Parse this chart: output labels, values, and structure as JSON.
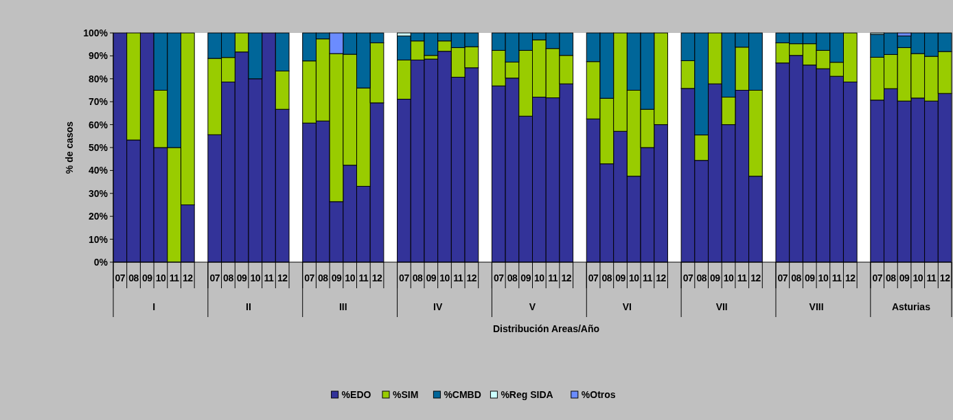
{
  "chart_data": {
    "type": "bar",
    "stacked": true,
    "xlabel": "Distribución Areas/Año",
    "ylabel": "% de casos",
    "categories": [
      "07",
      "08",
      "09",
      "10",
      "11",
      "12",
      null,
      "07",
      "08",
      "09",
      "10",
      "11",
      "12",
      null,
      "07",
      "08",
      "09",
      "10",
      "11",
      "12",
      null,
      "07",
      "08",
      "09",
      "10",
      "11",
      "12",
      null,
      "07",
      "08",
      "09",
      "10",
      "11",
      "12",
      null,
      "07",
      "08",
      "09",
      "10",
      "11",
      "12",
      null,
      "07",
      "08",
      "09",
      "10",
      "11",
      "12",
      null,
      "07",
      "08",
      "09",
      "10",
      "11",
      "12",
      null,
      "07",
      "08",
      "09",
      "10",
      "11",
      "12"
    ],
    "annotations": [
      "I",
      "II",
      "III",
      "IV",
      "V",
      "VI",
      "VII",
      "VIII",
      "Asturias"
    ],
    "ylim": [
      0,
      100
    ],
    "yticks": [
      {
        "value": 0,
        "label": "0%"
      },
      {
        "value": 10,
        "label": "10%"
      },
      {
        "value": 20,
        "label": "20%"
      },
      {
        "value": 30,
        "label": "30%"
      },
      {
        "value": 40,
        "label": "40%"
      },
      {
        "value": 50,
        "label": "50%"
      },
      {
        "value": 60,
        "label": "60%"
      },
      {
        "value": 70,
        "label": "70%"
      },
      {
        "value": 80,
        "label": "80%"
      },
      {
        "value": 90,
        "label": "90%"
      },
      {
        "value": 100,
        "label": "100%"
      }
    ],
    "grid": false,
    "legend": "bottom",
    "series": [
      {
        "name": "%EDO",
        "color": "#333399",
        "values": [
          100,
          53.3,
          100,
          50,
          null,
          25,
          null,
          55.6,
          78.6,
          91.7,
          80,
          100,
          66.7,
          null,
          60.7,
          61.6,
          26.4,
          42.3,
          33.1,
          69.5,
          null,
          71.1,
          88.2,
          88.6,
          92.0,
          80.7,
          84.8,
          null,
          76.9,
          80.3,
          63.7,
          72.0,
          71.7,
          77.8,
          null,
          62.5,
          42.9,
          57.1,
          37.5,
          50,
          60,
          null,
          75.8,
          44.4,
          77.8,
          60,
          75,
          37.5,
          null,
          86.9,
          90.2,
          86.0,
          84.4,
          81.1,
          78.6,
          null,
          70.7,
          75.7,
          70.3,
          71.6,
          70.3,
          73.6
        ]
      },
      {
        "name": "%SIM",
        "color": "#99cc00",
        "values": [
          null,
          46.7,
          null,
          25,
          50,
          75,
          null,
          33.3,
          10.7,
          8.3,
          null,
          null,
          16.7,
          null,
          27.1,
          35.8,
          64.6,
          48.4,
          42.9,
          26.2,
          null,
          17.1,
          8.3,
          1.6,
          4.5,
          12.9,
          9.2,
          null,
          15.5,
          7.0,
          28.7,
          25.0,
          21.5,
          12.4,
          null,
          25,
          28.6,
          42.9,
          37.5,
          16.7,
          40,
          null,
          12.1,
          11.1,
          22.2,
          12,
          18.8,
          37.5,
          null,
          8.8,
          5.1,
          9.3,
          8.0,
          6.1,
          21.4,
          null,
          18.7,
          14.9,
          23.3,
          19.4,
          19.5,
          18.3
        ]
      },
      {
        "name": "%CMBD",
        "color": "#006699",
        "values": [
          null,
          null,
          null,
          25,
          50,
          null,
          null,
          11.1,
          10.7,
          null,
          20,
          null,
          16.6,
          null,
          12.2,
          2.6,
          null,
          9.3,
          24.0,
          4.3,
          null,
          10.5,
          3.5,
          9.8,
          3.5,
          6.4,
          6.0,
          null,
          7.6,
          12.7,
          7.6,
          3.0,
          6.8,
          9.8,
          null,
          12.5,
          28.5,
          null,
          25,
          33.3,
          null,
          null,
          12.1,
          44.5,
          null,
          28,
          6.2,
          25,
          null,
          4.3,
          4.7,
          4.7,
          7.6,
          12.8,
          null,
          null,
          10.0,
          9.4,
          5.1,
          9.0,
          10.2,
          8.1
        ]
      },
      {
        "name": "%Reg SIDA",
        "color": "#ccffff",
        "values": [
          null,
          null,
          null,
          null,
          null,
          null,
          null,
          null,
          null,
          null,
          null,
          null,
          null,
          null,
          null,
          null,
          null,
          null,
          null,
          null,
          null,
          1.3,
          null,
          null,
          null,
          null,
          null,
          null,
          null,
          null,
          null,
          null,
          null,
          null,
          null,
          null,
          null,
          null,
          null,
          null,
          null,
          null,
          null,
          null,
          null,
          null,
          null,
          null,
          null,
          null,
          null,
          null,
          null,
          null,
          null,
          null,
          0.6,
          null,
          null,
          null,
          null,
          null
        ]
      },
      {
        "name": "%Otros",
        "color": "#6b8cff",
        "values": [
          null,
          null,
          null,
          null,
          null,
          null,
          null,
          null,
          null,
          null,
          null,
          null,
          null,
          null,
          null,
          null,
          9.0,
          null,
          null,
          null,
          null,
          null,
          null,
          null,
          null,
          null,
          null,
          null,
          null,
          null,
          null,
          null,
          null,
          null,
          null,
          null,
          null,
          null,
          null,
          null,
          null,
          null,
          null,
          null,
          null,
          null,
          null,
          null,
          null,
          null,
          null,
          null,
          null,
          null,
          null,
          null,
          null,
          null,
          1.3,
          null,
          null,
          null
        ]
      }
    ]
  }
}
